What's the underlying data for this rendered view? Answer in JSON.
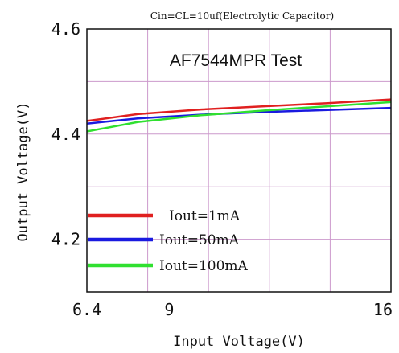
{
  "chart_data": {
    "type": "line",
    "title": "Cin=CL=10uf(Electrolytic Capacitor)",
    "annotation": "AF7544MPR Test",
    "xlabel": "Input Voltage(V)",
    "ylabel": "Output Voltage(V)",
    "xlim": [
      6.4,
      16
    ],
    "ylim": [
      4.1,
      4.6
    ],
    "xticks": [
      6.4,
      9,
      16
    ],
    "xtick_labels": [
      "6.4",
      "9",
      "16"
    ],
    "yticks": [
      4.2,
      4.4,
      4.6
    ],
    "ytick_labels": [
      "4.2",
      "4.4",
      "4.6"
    ],
    "grid": true,
    "grid_color": "#cc99cc",
    "legend_placement": "bottom-left",
    "series": [
      {
        "name": "Iout=1mA",
        "color": "#e02020",
        "x": [
          6.4,
          8,
          10,
          12,
          14,
          16
        ],
        "y": [
          4.425,
          4.438,
          4.447,
          4.453,
          4.459,
          4.466
        ]
      },
      {
        "name": "Iout=50mA",
        "color": "#1a1ae0",
        "x": [
          6.4,
          8,
          10,
          12,
          14,
          16
        ],
        "y": [
          4.42,
          4.43,
          4.437,
          4.442,
          4.446,
          4.45
        ]
      },
      {
        "name": "Iout=100mA",
        "color": "#30e030",
        "x": [
          6.4,
          8,
          10,
          12,
          14,
          16
        ],
        "y": [
          4.405,
          4.423,
          4.436,
          4.445,
          4.453,
          4.461
        ]
      }
    ]
  }
}
